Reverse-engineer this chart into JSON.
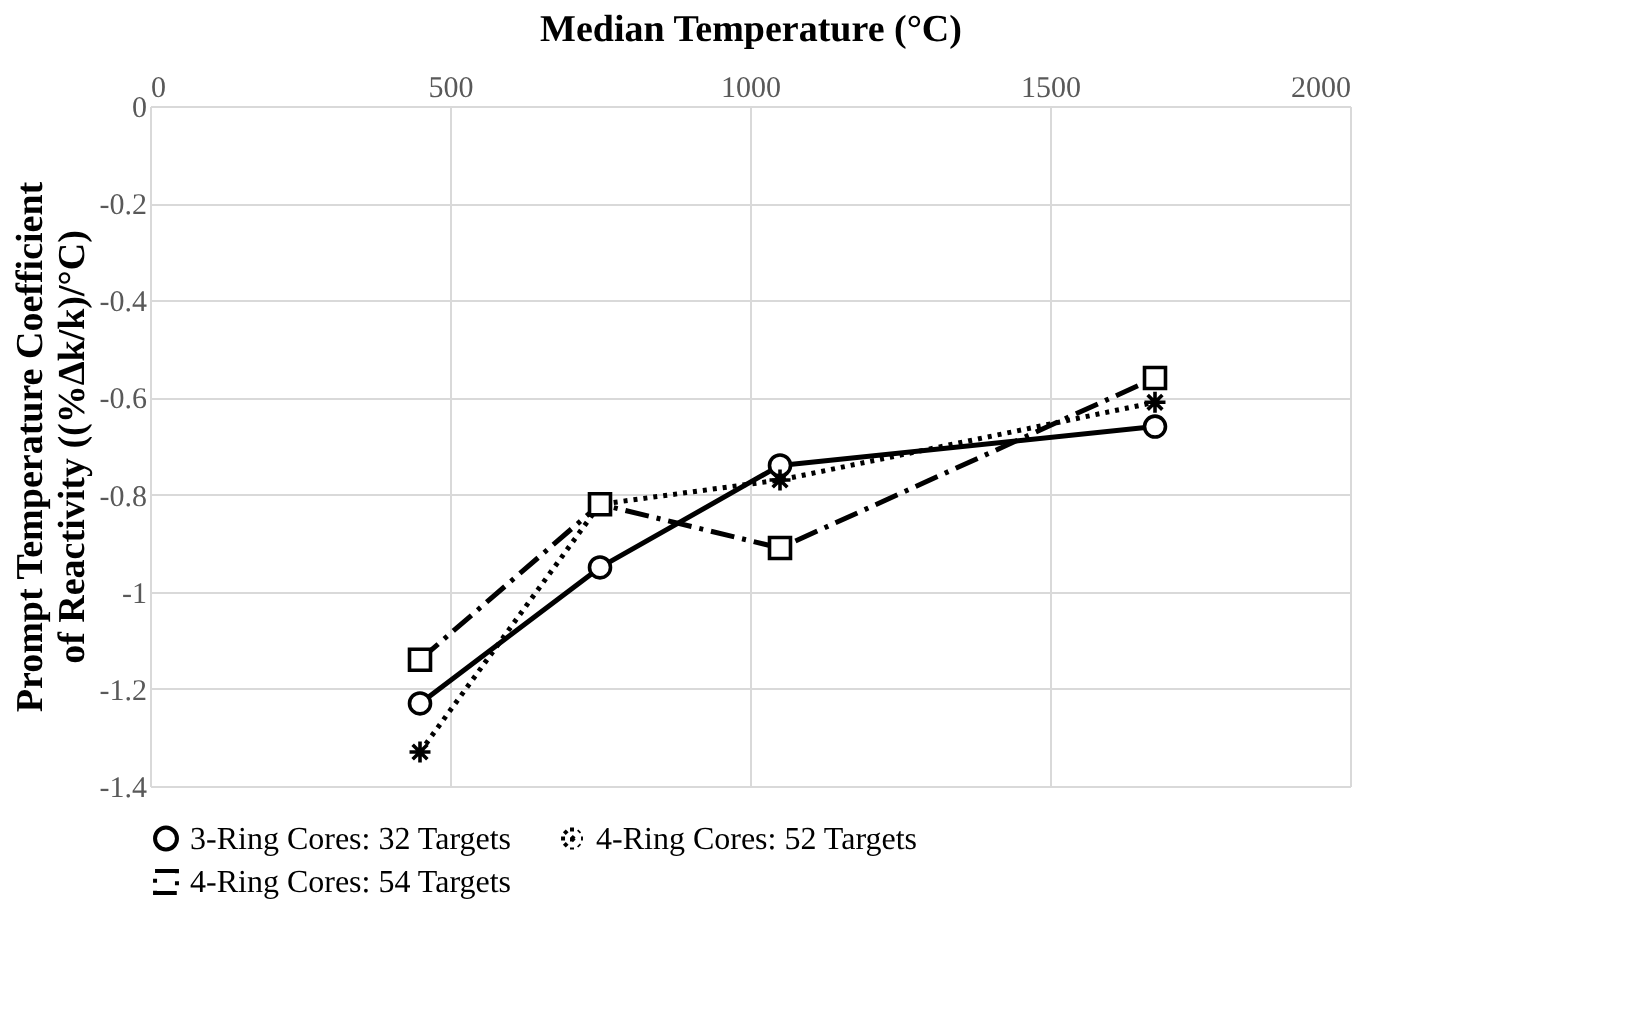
{
  "chart_data": {
    "type": "line",
    "xlabel": "Median Temperature (°C)",
    "ylabel": "Prompt Temperature Coefficient of Reactivity ((%Δk/k)/°C)",
    "x": [
      450,
      750,
      1050,
      1675
    ],
    "series": [
      {
        "name": "3-Ring Cores: 32 Targets",
        "color": "#000000",
        "marker": "circle",
        "line_style": "solid",
        "values": [
          -1.23,
          -0.95,
          -0.74,
          -0.66
        ]
      },
      {
        "name": "4-Ring Cores: 52 Targets",
        "color": "#000000",
        "marker": "cross",
        "line_style": "dotted",
        "values": [
          -1.33,
          -0.82,
          -0.77,
          -0.61
        ]
      },
      {
        "name": "4-Ring Cores: 54 Targets",
        "color": "#000000",
        "marker": "square",
        "line_style": "dashed",
        "values": [
          -1.14,
          -0.82,
          -0.91,
          -0.56
        ]
      }
    ],
    "xlim": [
      0,
      2000
    ],
    "xticks": [
      0,
      500,
      1000,
      1500,
      2000
    ],
    "ylim": [
      -1.4,
      0
    ],
    "yticks": [
      0,
      -0.2,
      -0.4,
      -0.6,
      -0.8,
      -1,
      -1.2,
      -1.4
    ],
    "grid": true,
    "legend": "bottom"
  }
}
